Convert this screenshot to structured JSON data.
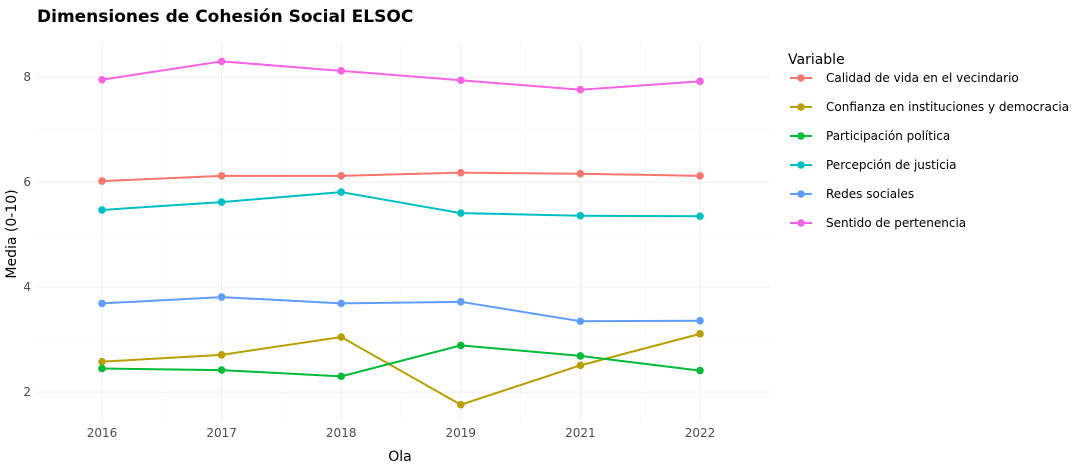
{
  "chart_data": {
    "type": "line",
    "title": "Dimensiones de Cohesión Social ELSOC",
    "xlabel": "Ola",
    "ylabel": "Media (0-10)",
    "x": [
      "2016",
      "2017",
      "2018",
      "2019",
      "2021",
      "2022"
    ],
    "ylim": [
      1.45,
      8.65
    ],
    "yticks": [
      2,
      4,
      6,
      8
    ],
    "grid": true,
    "legend": {
      "title": "Variable",
      "position": "right"
    },
    "series": [
      {
        "name": "Calidad de vida en el vecindario",
        "color": "#F8766D",
        "values": [
          6.02,
          6.12,
          6.12,
          6.18,
          6.16,
          6.12
        ]
      },
      {
        "name": "Confianza en instituciones y democracia",
        "color": "#B79F00",
        "values": [
          2.58,
          2.71,
          3.05,
          1.76,
          2.51,
          3.11
        ]
      },
      {
        "name": "Participación política",
        "color": "#00BA38",
        "values": [
          2.45,
          2.42,
          2.3,
          2.89,
          2.69,
          2.41
        ]
      },
      {
        "name": "Percepción de justicia",
        "color": "#00BFC4",
        "values": [
          5.47,
          5.62,
          5.81,
          5.41,
          5.36,
          5.35
        ]
      },
      {
        "name": "Redes sociales",
        "color": "#619CFF",
        "values": [
          3.69,
          3.81,
          3.69,
          3.72,
          3.35,
          3.36
        ]
      },
      {
        "name": "Sentido de pertenencia",
        "color": "#F564E3",
        "values": [
          7.95,
          8.3,
          8.12,
          7.94,
          7.76,
          7.92
        ]
      }
    ]
  }
}
